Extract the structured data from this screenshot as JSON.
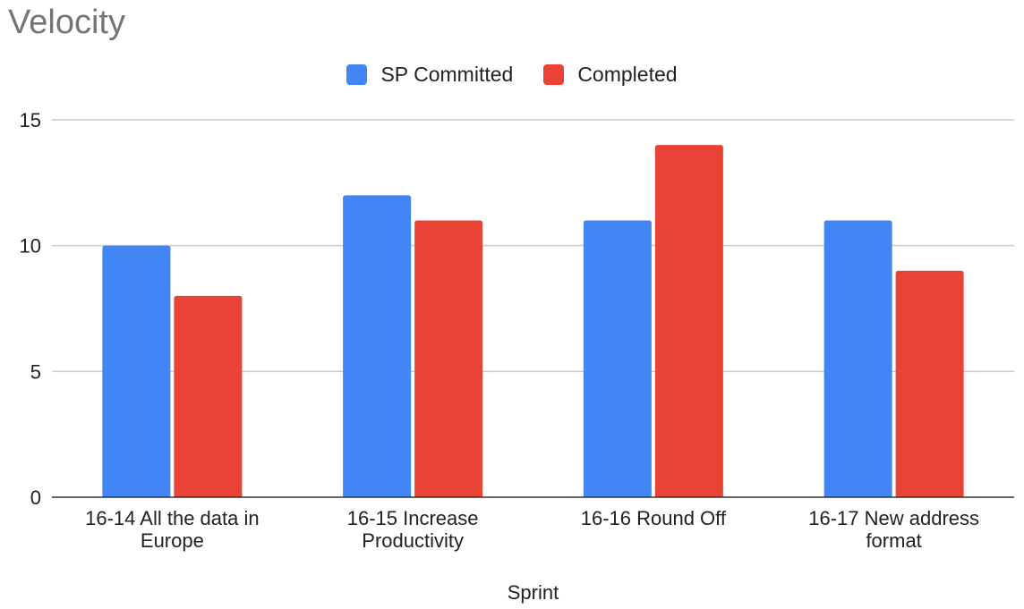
{
  "chart_data": {
    "type": "bar",
    "title": "Velocity",
    "xlabel": "Sprint",
    "ylabel": "",
    "ylim": [
      0,
      15
    ],
    "yticks": [
      0,
      5,
      10,
      15
    ],
    "grid": true,
    "legend_position": "top-center",
    "categories": [
      [
        "16-14 All the data in",
        "Europe"
      ],
      [
        "16-15 Increase",
        "Productivity"
      ],
      [
        "16-16 Round Off"
      ],
      [
        "16-17 New address",
        "format"
      ]
    ],
    "series": [
      {
        "name": "SP Committed",
        "color": "#4285f4",
        "values": [
          10,
          12,
          11,
          11
        ]
      },
      {
        "name": "Completed",
        "color": "#ea4335",
        "values": [
          8,
          11,
          14,
          9
        ]
      }
    ]
  }
}
